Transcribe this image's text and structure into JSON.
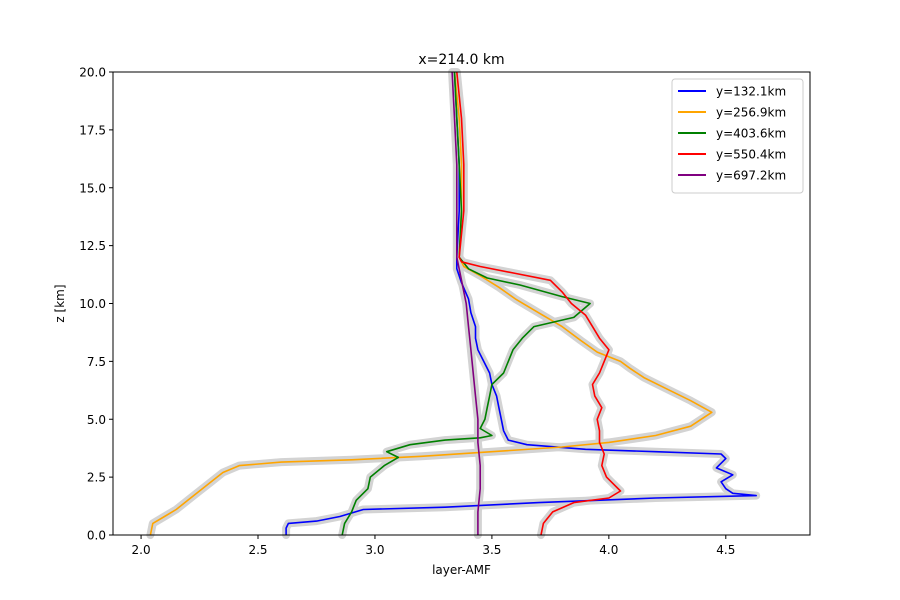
{
  "chart_data": {
    "type": "line",
    "title": "x=214.0 km",
    "xlabel": "layer-AMF",
    "ylabel": "z [km]",
    "xlim": [
      1.88,
      4.86
    ],
    "ylim": [
      0,
      20
    ],
    "xticks": [
      "2.0",
      "2.5",
      "3.0",
      "3.5",
      "4.0",
      "4.5"
    ],
    "yticks": [
      "0.0",
      "2.5",
      "5.0",
      "7.5",
      "10.0",
      "12.5",
      "15.0",
      "17.5",
      "20.0"
    ],
    "grid": false,
    "legend_position": "top-right",
    "uncertainty_band_color": "#d3d3d3",
    "series": [
      {
        "name": "y=132.1km",
        "color": "#0000ff",
        "points": [
          [
            2.62,
            0.0
          ],
          [
            2.62,
            0.3
          ],
          [
            2.63,
            0.5
          ],
          [
            2.75,
            0.6
          ],
          [
            2.85,
            0.8
          ],
          [
            2.95,
            1.1
          ],
          [
            3.3,
            1.2
          ],
          [
            3.7,
            1.4
          ],
          [
            4.2,
            1.6
          ],
          [
            4.63,
            1.7
          ],
          [
            4.53,
            1.8
          ],
          [
            4.5,
            2.0
          ],
          [
            4.48,
            2.3
          ],
          [
            4.53,
            2.6
          ],
          [
            4.46,
            2.9
          ],
          [
            4.5,
            3.3
          ],
          [
            4.48,
            3.5
          ],
          [
            4.2,
            3.6
          ],
          [
            3.9,
            3.7
          ],
          [
            3.65,
            3.9
          ],
          [
            3.57,
            4.1
          ],
          [
            3.55,
            4.5
          ],
          [
            3.54,
            5.0
          ],
          [
            3.53,
            5.5
          ],
          [
            3.52,
            6.0
          ],
          [
            3.5,
            6.5
          ],
          [
            3.49,
            7.0
          ],
          [
            3.46,
            7.6
          ],
          [
            3.44,
            8.0
          ],
          [
            3.43,
            8.5
          ],
          [
            3.43,
            9.0
          ],
          [
            3.41,
            9.6
          ],
          [
            3.4,
            10.2
          ],
          [
            3.37,
            10.9
          ],
          [
            3.35,
            11.5
          ],
          [
            3.35,
            12.0
          ],
          [
            3.36,
            14.0
          ],
          [
            3.36,
            16.0
          ],
          [
            3.35,
            18.0
          ],
          [
            3.34,
            20.0
          ]
        ]
      },
      {
        "name": "y=256.9km",
        "color": "#ffa500",
        "points": [
          [
            2.04,
            0.0
          ],
          [
            2.05,
            0.5
          ],
          [
            2.1,
            0.8
          ],
          [
            2.15,
            1.1
          ],
          [
            2.2,
            1.5
          ],
          [
            2.25,
            1.9
          ],
          [
            2.3,
            2.3
          ],
          [
            2.35,
            2.7
          ],
          [
            2.42,
            3.0
          ],
          [
            2.6,
            3.15
          ],
          [
            2.9,
            3.25
          ],
          [
            3.2,
            3.4
          ],
          [
            3.5,
            3.6
          ],
          [
            3.8,
            3.8
          ],
          [
            4.0,
            4.0
          ],
          [
            4.2,
            4.3
          ],
          [
            4.35,
            4.7
          ],
          [
            4.44,
            5.3
          ],
          [
            4.35,
            5.8
          ],
          [
            4.25,
            6.3
          ],
          [
            4.15,
            6.8
          ],
          [
            4.09,
            7.2
          ],
          [
            4.05,
            7.5
          ],
          [
            3.95,
            7.9
          ],
          [
            3.88,
            8.4
          ],
          [
            3.8,
            9.0
          ],
          [
            3.7,
            9.6
          ],
          [
            3.6,
            10.2
          ],
          [
            3.53,
            10.7
          ],
          [
            3.45,
            11.2
          ],
          [
            3.38,
            11.6
          ],
          [
            3.36,
            12.0
          ],
          [
            3.37,
            14.0
          ],
          [
            3.37,
            16.0
          ],
          [
            3.36,
            18.0
          ],
          [
            3.34,
            20.0
          ]
        ]
      },
      {
        "name": "y=403.6km",
        "color": "#008000",
        "points": [
          [
            2.86,
            0.0
          ],
          [
            2.87,
            0.5
          ],
          [
            2.9,
            1.0
          ],
          [
            2.92,
            1.5
          ],
          [
            2.97,
            2.0
          ],
          [
            2.98,
            2.5
          ],
          [
            3.04,
            3.0
          ],
          [
            3.1,
            3.35
          ],
          [
            3.05,
            3.6
          ],
          [
            3.15,
            3.9
          ],
          [
            3.3,
            4.1
          ],
          [
            3.45,
            4.2
          ],
          [
            3.5,
            4.3
          ],
          [
            3.45,
            4.6
          ],
          [
            3.47,
            5.0
          ],
          [
            3.48,
            5.5
          ],
          [
            3.49,
            6.0
          ],
          [
            3.5,
            6.5
          ],
          [
            3.55,
            7.0
          ],
          [
            3.57,
            7.5
          ],
          [
            3.59,
            8.0
          ],
          [
            3.63,
            8.5
          ],
          [
            3.68,
            9.0
          ],
          [
            3.85,
            9.4
          ],
          [
            3.92,
            10.0
          ],
          [
            3.8,
            10.3
          ],
          [
            3.62,
            10.8
          ],
          [
            3.48,
            11.1
          ],
          [
            3.4,
            11.5
          ],
          [
            3.36,
            12.0
          ],
          [
            3.37,
            14.0
          ],
          [
            3.36,
            16.0
          ],
          [
            3.35,
            18.0
          ],
          [
            3.34,
            20.0
          ]
        ]
      },
      {
        "name": "y=550.4km",
        "color": "#ff0000",
        "points": [
          [
            3.71,
            0.0
          ],
          [
            3.72,
            0.5
          ],
          [
            3.76,
            1.0
          ],
          [
            3.85,
            1.4
          ],
          [
            4.0,
            1.6
          ],
          [
            4.05,
            1.9
          ],
          [
            4.02,
            2.2
          ],
          [
            3.99,
            2.5
          ],
          [
            3.97,
            3.0
          ],
          [
            3.98,
            3.5
          ],
          [
            3.96,
            4.0
          ],
          [
            3.96,
            4.5
          ],
          [
            3.95,
            5.0
          ],
          [
            3.97,
            5.5
          ],
          [
            3.94,
            6.0
          ],
          [
            3.93,
            6.5
          ],
          [
            3.96,
            7.0
          ],
          [
            3.98,
            7.5
          ],
          [
            4.0,
            8.0
          ],
          [
            3.96,
            8.5
          ],
          [
            3.93,
            9.0
          ],
          [
            3.9,
            9.5
          ],
          [
            3.84,
            10.0
          ],
          [
            3.8,
            10.5
          ],
          [
            3.75,
            11.0
          ],
          [
            3.6,
            11.3
          ],
          [
            3.45,
            11.6
          ],
          [
            3.37,
            11.8
          ],
          [
            3.36,
            12.0
          ],
          [
            3.38,
            14.0
          ],
          [
            3.38,
            16.0
          ],
          [
            3.37,
            18.0
          ],
          [
            3.35,
            20.0
          ]
        ]
      },
      {
        "name": "y=697.2km",
        "color": "#800080",
        "points": [
          [
            3.44,
            0.0
          ],
          [
            3.44,
            1.0
          ],
          [
            3.45,
            2.0
          ],
          [
            3.45,
            3.0
          ],
          [
            3.44,
            4.0
          ],
          [
            3.44,
            5.0
          ],
          [
            3.43,
            6.0
          ],
          [
            3.42,
            7.0
          ],
          [
            3.41,
            8.0
          ],
          [
            3.4,
            9.0
          ],
          [
            3.39,
            10.0
          ],
          [
            3.37,
            11.0
          ],
          [
            3.35,
            12.0
          ],
          [
            3.35,
            14.0
          ],
          [
            3.35,
            16.0
          ],
          [
            3.34,
            18.0
          ],
          [
            3.33,
            20.0
          ]
        ]
      }
    ]
  }
}
